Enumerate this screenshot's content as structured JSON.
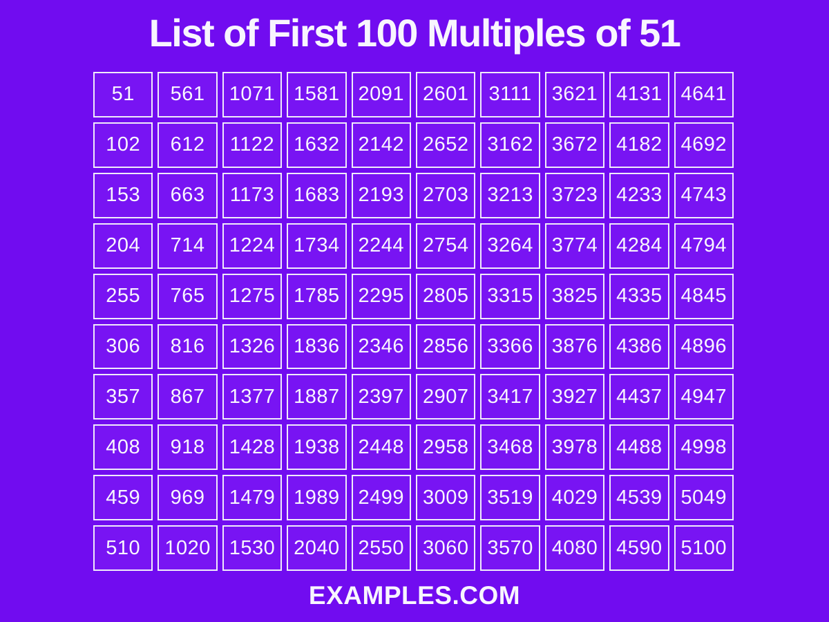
{
  "title": "List of First 100 Multiples of 51",
  "footer": "EXAMPLES.COM",
  "table": {
    "columns": 10,
    "row_count": 10,
    "rows": [
      [
        "51",
        "561",
        "1071",
        "1581",
        "2091",
        "2601",
        "3111",
        "3621",
        "4131",
        "4641"
      ],
      [
        "102",
        "612",
        "1122",
        "1632",
        "2142",
        "2652",
        "3162",
        "3672",
        "4182",
        "4692"
      ],
      [
        "153",
        "663",
        "1173",
        "1683",
        "2193",
        "2703",
        "3213",
        "3723",
        "4233",
        "4743"
      ],
      [
        "204",
        "714",
        "1224",
        "1734",
        "2244",
        "2754",
        "3264",
        "3774",
        "4284",
        "4794"
      ],
      [
        "255",
        "765",
        "1275",
        "1785",
        "2295",
        "2805",
        "3315",
        "3825",
        "4335",
        "4845"
      ],
      [
        "306",
        "816",
        "1326",
        "1836",
        "2346",
        "2856",
        "3366",
        "3876",
        "4386",
        "4896"
      ],
      [
        "357",
        "867",
        "1377",
        "1887",
        "2397",
        "2907",
        "3417",
        "3927",
        "4437",
        "4947"
      ],
      [
        "408",
        "918",
        "1428",
        "1938",
        "2448",
        "2958",
        "3468",
        "3978",
        "4488",
        "4998"
      ],
      [
        "459",
        "969",
        "1479",
        "1989",
        "2499",
        "3009",
        "3519",
        "4029",
        "4539",
        "5049"
      ],
      [
        "510",
        "1020",
        "1530",
        "2040",
        "2550",
        "3060",
        "3570",
        "4080",
        "4590",
        "5100"
      ]
    ]
  },
  "colors": {
    "background": "#710CF0",
    "cell_background": "#7814F3",
    "grid_line": "#F0EBFA",
    "text": "#F8F5FE"
  }
}
